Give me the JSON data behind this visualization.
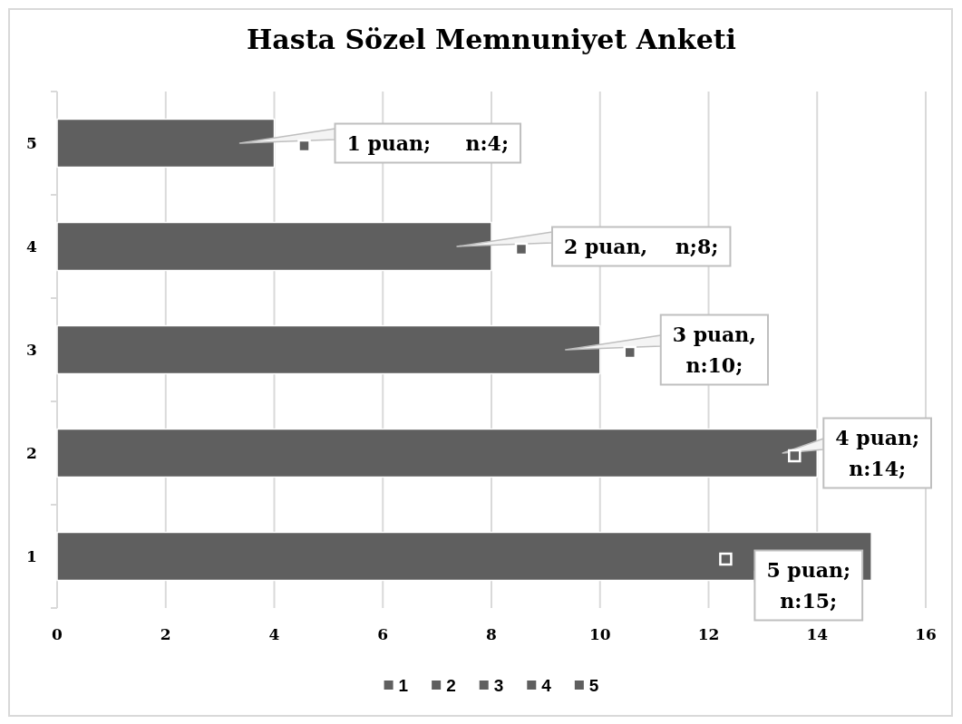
{
  "chart_data": {
    "type": "bar",
    "orientation": "horizontal",
    "stacked": true,
    "title": "Hasta Sözel Memnuniyet Anketi",
    "categories": [
      "5",
      "4",
      "3",
      "2",
      "1"
    ],
    "series": [
      {
        "name": "1",
        "color": "#5f5f5f",
        "values": [
          null,
          null,
          null,
          null,
          15
        ],
        "value_labels": [
          null,
          null,
          null,
          null,
          "5 puan;\nn:15;"
        ]
      },
      {
        "name": "2",
        "color": "#5f5f5f",
        "values": [
          null,
          null,
          null,
          14,
          null
        ],
        "value_labels": [
          null,
          null,
          null,
          "4 puan;\nn:14;",
          null
        ]
      },
      {
        "name": "3",
        "color": "#5f5f5f",
        "values": [
          null,
          null,
          10,
          null,
          null
        ],
        "value_labels": [
          null,
          null,
          "3 puan,\nn:10;",
          null,
          null
        ]
      },
      {
        "name": "4",
        "color": "#5f5f5f",
        "values": [
          null,
          8,
          null,
          null,
          null
        ],
        "value_labels": [
          null,
          "2 puan,    n;8;",
          null,
          null,
          null
        ]
      },
      {
        "name": "5",
        "color": "#5f5f5f",
        "values": [
          4,
          null,
          null,
          null,
          null
        ],
        "value_labels": [
          "1 puan;     n:4;",
          null,
          null,
          null,
          null
        ]
      }
    ],
    "xlim": [
      0,
      16
    ],
    "xticks": [
      0,
      2,
      4,
      6,
      8,
      10,
      12,
      14,
      16
    ],
    "grid": "x",
    "legend": "bottom"
  }
}
